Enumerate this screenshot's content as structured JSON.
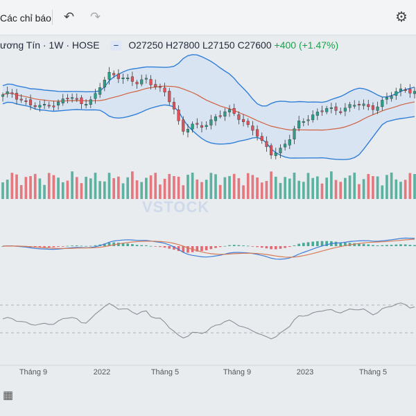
{
  "toolbar": {
    "indicators_label": "Các chỉ báo",
    "undo_icon": "undo-icon",
    "redo_icon": "redo-icon",
    "settings_icon": "gear-icon"
  },
  "legend": {
    "symbol_title": "ương Tín · 1W · HOSE",
    "ohlc": "O27250 H27800 L27150 C27600",
    "change": "+400 (+1.47%)"
  },
  "watermark": "VSTOCK",
  "colors": {
    "up": "#2e9e86",
    "down": "#e0525a",
    "band": "#2f7fd8",
    "ma": "#d0603f",
    "macd_line": "#3b7dd8",
    "signal_line": "#d67a55",
    "rsi": "#8a8f98",
    "band_fill": "#cfe0f3"
  },
  "chart_data": {
    "type": "candlestick",
    "x_labels": [
      "Tháng 9",
      "2022",
      "Tháng 5",
      "Tháng 9",
      "2023",
      "Tháng 5"
    ],
    "close_path": [
      35.6,
      36.2,
      35.1,
      34.2,
      33.4,
      34.5,
      34.0,
      35.4,
      35.0,
      34.6,
      34.8,
      37.6,
      39.8,
      39.2,
      38.3,
      37.9,
      38.8,
      37.5,
      36.2,
      33.9,
      29.6,
      30.4,
      30.0,
      31.0,
      32.4,
      32.8,
      32.4,
      31.0,
      29.7,
      27.1,
      25.6,
      26.3,
      28.0,
      30.7,
      31.9,
      32.5,
      33.4,
      33.0,
      33.6,
      33.9,
      34.1,
      33.5,
      34.2,
      35.2,
      36.4,
      37.0,
      36.3
    ],
    "price_unit": "thousand VND (approx.)"
  }
}
